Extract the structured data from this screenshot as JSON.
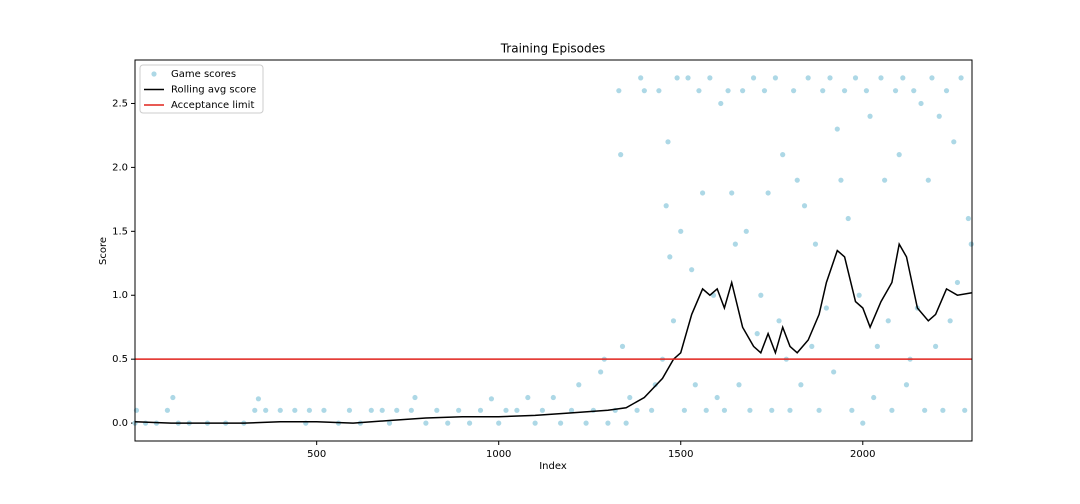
{
  "chart_data": {
    "type": "scatter",
    "title": "Training Episodes",
    "x_label": "Index",
    "y_label": "Score",
    "xlim": [
      1,
      2300
    ],
    "ylim": [
      -0.14,
      2.84
    ],
    "xticks": [
      500,
      1000,
      1500,
      2000
    ],
    "yticks": [
      {
        "value": 0,
        "label": "0.0"
      },
      {
        "value": 0.5,
        "label": "0.5"
      },
      {
        "value": 1,
        "label": "1.0"
      },
      {
        "value": 1.5,
        "label": "1.5"
      },
      {
        "value": 2,
        "label": "2.0"
      },
      {
        "value": 2.5,
        "label": "2.5"
      }
    ],
    "legend": "upper left",
    "series": [
      {
        "name": "Game scores",
        "kind": "points",
        "color": "#add8e6",
        "x": [
          1,
          5,
          30,
          60,
          90,
          105,
          120,
          150,
          200,
          250,
          300,
          330,
          340,
          360,
          400,
          440,
          470,
          480,
          520,
          560,
          590,
          620,
          650,
          680,
          700,
          720,
          760,
          770,
          800,
          830,
          860,
          890,
          920,
          950,
          980,
          1000,
          1020,
          1050,
          1080,
          1100,
          1120,
          1150,
          1170,
          1200,
          1220,
          1240,
          1260,
          1280,
          1290,
          1300,
          1320,
          1330,
          1335,
          1340,
          1350,
          1360,
          1380,
          1390,
          1400,
          1420,
          1430,
          1440,
          1450,
          1460,
          1465,
          1470,
          1480,
          1490,
          1500,
          1510,
          1520,
          1530,
          1540,
          1550,
          1560,
          1570,
          1580,
          1590,
          1600,
          1610,
          1620,
          1630,
          1640,
          1650,
          1660,
          1670,
          1680,
          1690,
          1700,
          1710,
          1720,
          1730,
          1740,
          1750,
          1760,
          1770,
          1780,
          1790,
          1800,
          1810,
          1820,
          1830,
          1840,
          1850,
          1860,
          1870,
          1880,
          1890,
          1900,
          1910,
          1920,
          1930,
          1940,
          1950,
          1960,
          1970,
          1980,
          1990,
          2000,
          2010,
          2020,
          2030,
          2040,
          2050,
          2060,
          2070,
          2080,
          2090,
          2100,
          2110,
          2120,
          2130,
          2140,
          2150,
          2160,
          2170,
          2180,
          2190,
          2200,
          2210,
          2220,
          2230,
          2240,
          2250,
          2260,
          2270,
          2280,
          2290,
          2298
        ],
        "values": [
          0,
          0.1,
          0,
          0,
          0.1,
          0.2,
          0,
          0,
          0,
          0,
          0,
          0.1,
          0.19,
          0.1,
          0.1,
          0.1,
          0,
          0.1,
          0.1,
          0,
          0.1,
          0,
          0.1,
          0.1,
          0,
          0.1,
          0.1,
          0.2,
          0,
          0.1,
          0,
          0.1,
          0,
          0.1,
          0.19,
          0,
          0.1,
          0.1,
          0.2,
          0,
          0.1,
          0.2,
          0,
          0.1,
          0.3,
          0,
          0.1,
          0.4,
          0.5,
          0,
          0.1,
          2.6,
          2.1,
          0.6,
          0,
          0.2,
          0.1,
          2.7,
          2.6,
          0.1,
          0.3,
          2.6,
          0.5,
          1.7,
          2.2,
          1.3,
          0.8,
          2.7,
          1.5,
          0.1,
          2.7,
          1.2,
          0.3,
          2.6,
          1.8,
          0.1,
          2.7,
          1.0,
          0.2,
          2.5,
          0.1,
          2.6,
          1.8,
          1.4,
          0.3,
          2.6,
          1.5,
          0.1,
          2.7,
          0.7,
          1.0,
          2.6,
          1.8,
          0.1,
          2.7,
          0.8,
          2.1,
          0.5,
          0.1,
          2.6,
          1.9,
          0.3,
          1.7,
          2.7,
          0.6,
          1.4,
          0.1,
          2.6,
          0.9,
          2.7,
          0.4,
          2.3,
          1.9,
          2.6,
          1.6,
          0.1,
          2.7,
          1.0,
          0,
          2.6,
          2.4,
          0.2,
          0.6,
          2.7,
          1.9,
          0.8,
          0.1,
          2.6,
          2.1,
          2.7,
          0.3,
          0.5,
          2.6,
          0.9,
          2.5,
          0.1,
          1.9,
          2.7,
          0.6,
          2.4,
          0.1,
          2.6,
          0.8,
          2.2,
          1.1,
          2.7,
          0.1,
          1.6,
          1.4
        ]
      },
      {
        "name": "Rolling avg score",
        "kind": "line",
        "color": "#000000",
        "x": [
          1,
          100,
          200,
          300,
          400,
          500,
          600,
          700,
          800,
          900,
          1000,
          1100,
          1200,
          1300,
          1350,
          1400,
          1450,
          1480,
          1500,
          1530,
          1560,
          1580,
          1600,
          1620,
          1640,
          1670,
          1700,
          1720,
          1740,
          1760,
          1780,
          1800,
          1820,
          1850,
          1880,
          1900,
          1930,
          1950,
          1980,
          2000,
          2020,
          2050,
          2080,
          2100,
          2120,
          2150,
          2180,
          2200,
          2230,
          2260,
          2300
        ],
        "values": [
          0.01,
          0,
          0,
          0,
          0.01,
          0.01,
          0,
          0.02,
          0.04,
          0.05,
          0.05,
          0.06,
          0.08,
          0.1,
          0.12,
          0.2,
          0.35,
          0.5,
          0.55,
          0.85,
          1.05,
          1.0,
          1.05,
          0.9,
          1.1,
          0.75,
          0.6,
          0.55,
          0.7,
          0.55,
          0.75,
          0.6,
          0.55,
          0.65,
          0.85,
          1.1,
          1.35,
          1.3,
          0.95,
          0.9,
          0.75,
          0.95,
          1.1,
          1.4,
          1.3,
          0.9,
          0.8,
          0.85,
          1.05,
          1.0,
          1.02
        ]
      },
      {
        "name": "Acceptance limit",
        "kind": "hline",
        "color": "#e0231c",
        "values": [
          0.5
        ]
      }
    ]
  }
}
